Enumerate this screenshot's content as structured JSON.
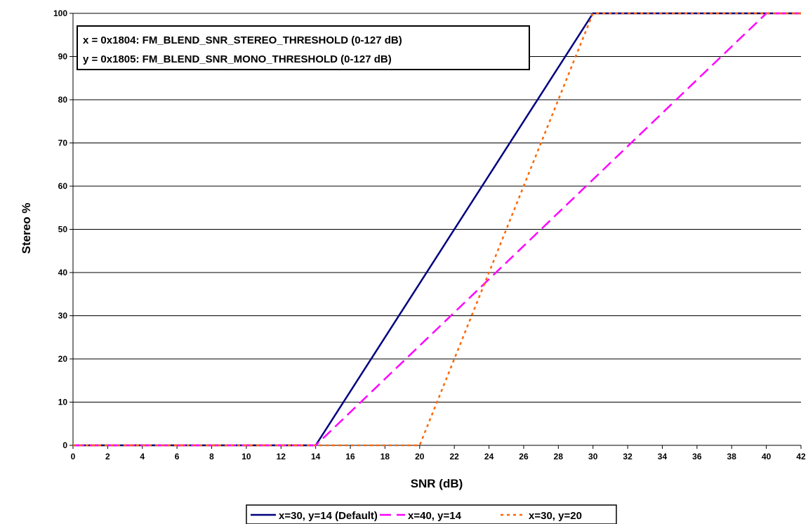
{
  "chart_data": {
    "type": "line",
    "xlabel": "SNR (dB)",
    "ylabel": "Stereo %",
    "xlim": [
      0,
      42
    ],
    "ylim": [
      0,
      100
    ],
    "x_ticks": [
      "0",
      "2",
      "4",
      "6",
      "8",
      "10",
      "12",
      "14",
      "16",
      "18",
      "20",
      "22",
      "24",
      "26",
      "28",
      "30",
      "32",
      "34",
      "36",
      "38",
      "40",
      "42"
    ],
    "y_ticks": [
      "0",
      "10",
      "20",
      "30",
      "40",
      "50",
      "60",
      "70",
      "80",
      "90",
      "100"
    ],
    "grid": "horizontal",
    "legend_position": "bottom",
    "annotation": {
      "line1": "x = 0x1804: FM_BLEND_SNR_STEREO_THRESHOLD (0-127 dB)",
      "line2": "y = 0x1805: FM_BLEND_SNR_MONO_THRESHOLD (0-127 dB)"
    },
    "series": [
      {
        "name": "x=30, y=14 (Default)",
        "color": "#000080",
        "style": "solid",
        "points": [
          [
            0,
            0
          ],
          [
            14,
            0
          ],
          [
            30,
            100
          ],
          [
            42,
            100
          ]
        ]
      },
      {
        "name": "x=40, y=14",
        "color": "#FF00FF",
        "style": "dashed",
        "points": [
          [
            0,
            0
          ],
          [
            14,
            0
          ],
          [
            40,
            100
          ],
          [
            42,
            100
          ]
        ]
      },
      {
        "name": "x=30, y=20",
        "color": "#FF6600",
        "style": "dotted",
        "points": [
          [
            0,
            0
          ],
          [
            20,
            0
          ],
          [
            30,
            100
          ],
          [
            42,
            100
          ]
        ]
      }
    ]
  }
}
